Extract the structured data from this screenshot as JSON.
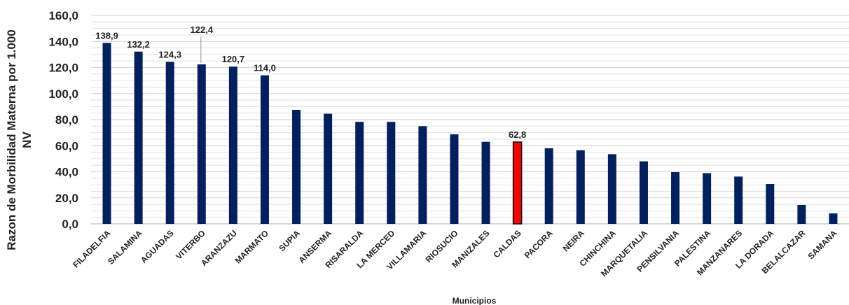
{
  "chart_data": {
    "type": "bar",
    "title": "",
    "xlabel": "Municipios",
    "ylabel": "Razon de Morbilidad Materna por 1.000 NV",
    "ylabel_lines": [
      "Razon de Morbilidad Materna por 1.000",
      "NV"
    ],
    "ylim": [
      0,
      160
    ],
    "yticks": [
      "0,0",
      "20,0",
      "40,0",
      "60,0",
      "80,0",
      "100,0",
      "120,0",
      "140,0",
      "160,0"
    ],
    "grid": true,
    "legend": "none",
    "categories": [
      "FILADELFIA",
      "SALAMINA",
      "AGUADAS",
      "VITERBO",
      "ARANZAZU",
      "MARMATO",
      "SUPIA",
      "ANSERMA",
      "RISARALDA",
      "LA MERCED",
      "VILLAMARIA",
      "RIOSUCIO",
      "MANIZALES",
      "CALDAS",
      "PACORA",
      "NEIRA",
      "CHINCHINA",
      "MARQUETALIA",
      "PENSILVANIA",
      "PALESTINA",
      "MANZANARES",
      "LA DORADA",
      "BELALCAZAR",
      "SAMANA"
    ],
    "values": [
      138.9,
      132.2,
      124.3,
      122.4,
      120.7,
      114.0,
      87.5,
      84.5,
      78.3,
      78.3,
      75.0,
      68.7,
      63.0,
      62.8,
      58.0,
      56.5,
      53.5,
      48.0,
      39.7,
      38.9,
      36.3,
      30.6,
      14.5,
      8.0
    ],
    "data_labels": [
      "138,9",
      "132,2",
      "124,3",
      "122,4",
      "120,7",
      "114,0",
      null,
      null,
      null,
      null,
      null,
      null,
      null,
      "62,8",
      null,
      null,
      null,
      null,
      null,
      null,
      null,
      null,
      null,
      null
    ],
    "highlight_index": 13,
    "colors": {
      "bar": "#002060",
      "highlight": "#ff0000",
      "highlight_border": "#000000",
      "grid": "#d9d9d9",
      "axis": "#bfbfbf",
      "text": "#222222"
    }
  }
}
